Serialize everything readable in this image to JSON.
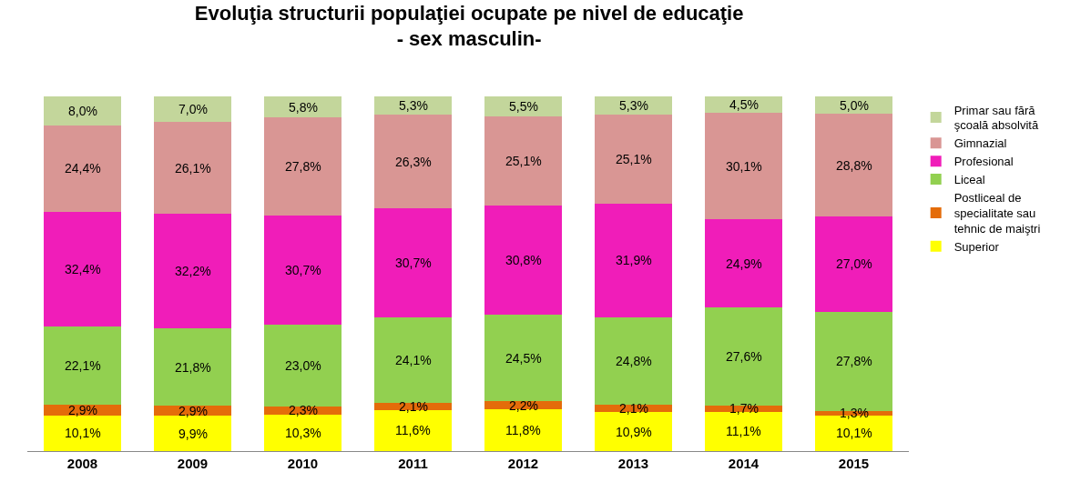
{
  "chart_data": {
    "type": "bar",
    "title": "Evoluţia structurii populaţiei ocupate pe nivel de educaţie",
    "subtitle": "- sex masculin-",
    "categories": [
      "2008",
      "2009",
      "2010",
      "2011",
      "2012",
      "2013",
      "2014",
      "2015"
    ],
    "stacked": true,
    "legend": "right",
    "grid": false,
    "series": [
      {
        "name": "Superior",
        "color": "#ffff00",
        "values": [
          10.1,
          9.9,
          10.3,
          11.6,
          11.8,
          10.9,
          11.1,
          10.1
        ],
        "value_labels": [
          "10,1%",
          "9,9%",
          "10,3%",
          "11,6%",
          "11,8%",
          "10,9%",
          "11,1%",
          "10,1%"
        ]
      },
      {
        "name": "Postliceal de specialitate sau tehnic de maiştri",
        "color": "#e46c0a",
        "values": [
          2.9,
          2.9,
          2.3,
          2.1,
          2.2,
          2.1,
          1.7,
          1.3
        ],
        "value_labels": [
          "2,9%",
          "2,9%",
          "2,3%",
          "2,1%",
          "2,2%",
          "2,1%",
          "1,7%",
          "1,3%"
        ]
      },
      {
        "name": "Liceal",
        "color": "#92d050",
        "values": [
          22.1,
          21.8,
          23.0,
          24.1,
          24.5,
          24.8,
          27.6,
          27.8
        ],
        "value_labels": [
          "22,1%",
          "21,8%",
          "23,0%",
          "24,1%",
          "24,5%",
          "24,8%",
          "27,6%",
          "27,8%"
        ]
      },
      {
        "name": "Profesional",
        "color": "#f01db9",
        "values": [
          32.4,
          32.2,
          30.7,
          30.7,
          30.8,
          31.9,
          24.9,
          27.0
        ],
        "value_labels": [
          "32,4%",
          "32,2%",
          "30,7%",
          "30,7%",
          "30,8%",
          "31,9%",
          "24,9%",
          "27,0%"
        ]
      },
      {
        "name": "Gimnazial",
        "color": "#d99694",
        "values": [
          24.4,
          26.1,
          27.8,
          26.3,
          25.1,
          25.1,
          30.1,
          28.8
        ],
        "value_labels": [
          "24,4%",
          "26,1%",
          "27,8%",
          "26,3%",
          "25,1%",
          "25,1%",
          "30,1%",
          "28,8%"
        ]
      },
      {
        "name": "Primar sau fără şcoală absolvită",
        "color": "#c3d69b",
        "values": [
          8.0,
          7.0,
          5.8,
          5.3,
          5.5,
          5.3,
          4.5,
          5.0
        ],
        "value_labels": [
          "8,0%",
          "7,0%",
          "5,8%",
          "5,3%",
          "5,5%",
          "5,3%",
          "4,5%",
          "5,0%"
        ]
      }
    ]
  }
}
